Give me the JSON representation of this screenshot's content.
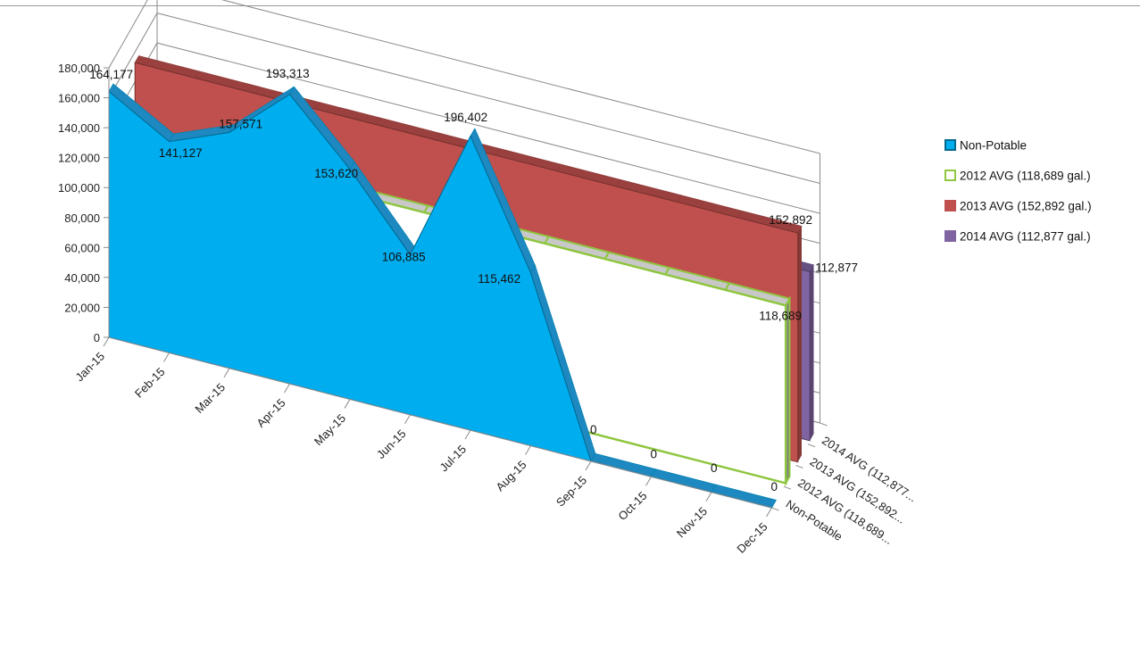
{
  "colors": {
    "non_potable": "#00adee",
    "non_potable_top": "#1e88c0",
    "avg_2012": "#8ec63f",
    "avg_2013": "#c0504d",
    "avg_2014": "#8064a2",
    "grid": "#8a8a8a"
  },
  "chart_data": {
    "type": "area",
    "title": "",
    "xlabel": "",
    "ylabel": "",
    "ylim": [
      0,
      180000
    ],
    "yticks": [
      "0",
      "20,000",
      "40,000",
      "60,000",
      "80,000",
      "100,000",
      "120,000",
      "140,000",
      "160,000",
      "180,000"
    ],
    "categories": [
      "Jan-15",
      "Feb-15",
      "Mar-15",
      "Apr-15",
      "May-15",
      "Jun-15",
      "Jul-15",
      "Aug-15",
      "Sep-15",
      "Oct-15",
      "Nov-15",
      "Dec-15"
    ],
    "depth_labels": [
      "Non-Potable",
      "2012 AVG (118,689...",
      "2013 AVG (152,892...",
      "2014 AVG (112,877..."
    ],
    "legend_position": "right",
    "series": [
      {
        "name": "Non-Potable",
        "values": [
          164177,
          141127,
          157571,
          193313,
          153620,
          106885,
          196402,
          115462,
          0,
          0,
          0,
          0
        ],
        "data_labels": [
          "164,177",
          "141,127",
          "157,571",
          "193,313",
          "153,620",
          "106,885",
          "196,402",
          "115,462",
          "0",
          "0",
          "0",
          "0"
        ]
      },
      {
        "name": "2012 AVG (118,689 gal.)",
        "value": 118689,
        "data_label": "118,689"
      },
      {
        "name": "2013 AVG (152,892 gal.)",
        "value": 152892,
        "data_label": "152,892"
      },
      {
        "name": "2014 AVG (112,877 gal.)",
        "value": 112877,
        "data_label": "112,877"
      }
    ]
  }
}
